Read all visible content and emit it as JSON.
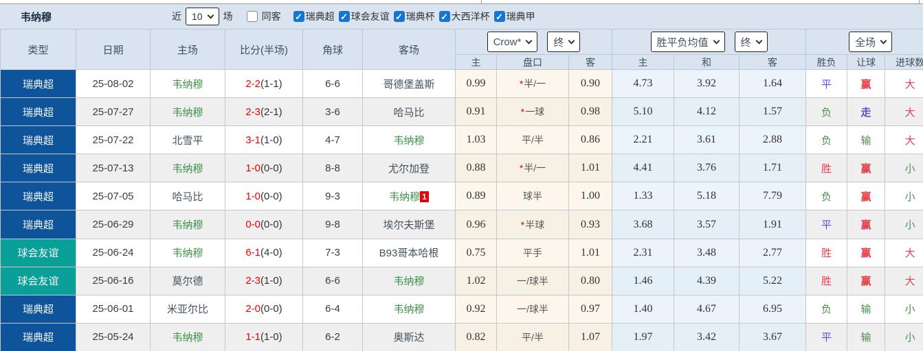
{
  "title": "韦纳穆",
  "filter": {
    "recent_label": "近",
    "recent_value": "10",
    "matches_label": "场",
    "same_away_label": "同客",
    "same_away_checked": false,
    "leagues": [
      {
        "label": "瑞典超",
        "checked": true
      },
      {
        "label": "球会友谊",
        "checked": true
      },
      {
        "label": "瑞典杯",
        "checked": true
      },
      {
        "label": "大西洋杯",
        "checked": true
      },
      {
        "label": "瑞典甲",
        "checked": true
      }
    ]
  },
  "header": {
    "type": "类型",
    "date": "日期",
    "home": "主场",
    "score": "比分(半场)",
    "corner": "角球",
    "away": "客场",
    "odds_company_select": "Crow*",
    "odds_time_select": "终",
    "avg_select": "胜平负均值",
    "avg_time_select": "终",
    "scope_select": "全场",
    "sub": [
      "主",
      "盘口",
      "客",
      "主",
      "和",
      "客",
      "胜负",
      "让球",
      "进球数"
    ]
  },
  "rows": [
    {
      "league": "瑞典超",
      "date": "25-08-02",
      "home": "韦纳穆",
      "home_focus": true,
      "score": "2-2",
      "half": "(1-1)",
      "corners": "6-6",
      "away": "哥德堡盖斯",
      "away_focus": false,
      "away_badge": "",
      "crow_star": true,
      "crow": [
        "0.99",
        "半/一",
        "0.90"
      ],
      "avg": [
        "4.73",
        "3.92",
        "1.64"
      ],
      "results": [
        "平",
        "赢",
        "大"
      ]
    },
    {
      "league": "瑞典超",
      "date": "25-07-27",
      "home": "韦纳穆",
      "home_focus": true,
      "score": "2-3",
      "half": "(2-1)",
      "corners": "3-6",
      "away": "哈马比",
      "away_focus": false,
      "away_badge": "",
      "crow_star": true,
      "crow": [
        "0.91",
        "一球",
        "0.98"
      ],
      "avg": [
        "5.10",
        "4.12",
        "1.57"
      ],
      "results": [
        "负",
        "走",
        "大"
      ]
    },
    {
      "league": "瑞典超",
      "date": "25-07-22",
      "home": "北雪平",
      "home_focus": false,
      "score": "3-1",
      "half": "(1-0)",
      "corners": "4-7",
      "away": "韦纳穆",
      "away_focus": true,
      "away_badge": "",
      "crow_star": false,
      "crow": [
        "1.03",
        "平/半",
        "0.86"
      ],
      "avg": [
        "2.21",
        "3.61",
        "2.88"
      ],
      "results": [
        "负",
        "输",
        "大"
      ]
    },
    {
      "league": "瑞典超",
      "date": "25-07-13",
      "home": "韦纳穆",
      "home_focus": true,
      "score": "1-0",
      "half": "(0-0)",
      "corners": "8-8",
      "away": "尤尔加登",
      "away_focus": false,
      "away_badge": "",
      "crow_star": true,
      "crow": [
        "0.88",
        "半/一",
        "1.01"
      ],
      "avg": [
        "4.41",
        "3.76",
        "1.71"
      ],
      "results": [
        "胜",
        "赢",
        "小"
      ]
    },
    {
      "league": "瑞典超",
      "date": "25-07-05",
      "home": "哈马比",
      "home_focus": false,
      "score": "1-0",
      "half": "(0-0)",
      "corners": "9-3",
      "away": "韦纳穆",
      "away_focus": true,
      "away_badge": "1",
      "crow_star": false,
      "crow": [
        "0.89",
        "球半",
        "1.00"
      ],
      "avg": [
        "1.33",
        "5.18",
        "7.79"
      ],
      "results": [
        "负",
        "赢",
        "小"
      ]
    },
    {
      "league": "瑞典超",
      "date": "25-06-29",
      "home": "韦纳穆",
      "home_focus": true,
      "score": "0-0",
      "half": "(0-0)",
      "corners": "9-8",
      "away": "埃尔夫斯堡",
      "away_focus": false,
      "away_badge": "",
      "crow_star": true,
      "crow": [
        "0.96",
        "半球",
        "0.93"
      ],
      "avg": [
        "3.68",
        "3.57",
        "1.91"
      ],
      "results": [
        "平",
        "赢",
        "小"
      ]
    },
    {
      "league": "球会友谊",
      "date": "25-06-24",
      "home": "韦纳穆",
      "home_focus": true,
      "score": "6-1",
      "half": "(4-0)",
      "corners": "7-3",
      "away": "B93哥本哈根",
      "away_focus": false,
      "away_badge": "",
      "crow_star": false,
      "crow": [
        "0.75",
        "平手",
        "1.01"
      ],
      "avg": [
        "2.31",
        "3.48",
        "2.77"
      ],
      "results": [
        "胜",
        "赢",
        "大"
      ]
    },
    {
      "league": "球会友谊",
      "date": "25-06-16",
      "home": "莫尔德",
      "home_focus": false,
      "score": "2-3",
      "half": "(1-0)",
      "corners": "6-6",
      "away": "韦纳穆",
      "away_focus": true,
      "away_badge": "",
      "crow_star": false,
      "crow": [
        "1.02",
        "一/球半",
        "0.80"
      ],
      "avg": [
        "1.46",
        "4.39",
        "5.22"
      ],
      "results": [
        "胜",
        "赢",
        "大"
      ]
    },
    {
      "league": "瑞典超",
      "date": "25-06-01",
      "home": "米亚尔比",
      "home_focus": false,
      "score": "2-0",
      "half": "(0-0)",
      "corners": "6-4",
      "away": "韦纳穆",
      "away_focus": true,
      "away_badge": "",
      "crow_star": false,
      "crow": [
        "0.92",
        "一/球半",
        "0.97"
      ],
      "avg": [
        "1.40",
        "4.67",
        "6.95"
      ],
      "results": [
        "负",
        "输",
        "小"
      ]
    },
    {
      "league": "瑞典超",
      "date": "25-05-24",
      "home": "韦纳穆",
      "home_focus": true,
      "score": "1-1",
      "half": "(1-0)",
      "corners": "6-2",
      "away": "奥斯达",
      "away_focus": false,
      "away_badge": "",
      "crow_star": false,
      "crow": [
        "0.82",
        "平/半",
        "1.07"
      ],
      "avg": [
        "1.97",
        "3.42",
        "3.67"
      ],
      "results": [
        "平",
        "输",
        "小"
      ]
    }
  ],
  "colors": {
    "league_blue_bg": "#0e549b",
    "friendly_teal_bg": "#0aa099",
    "focus_team_green": "#3c9048",
    "score_red": "#ee0000",
    "result_red": "#e5404b",
    "result_blue": "#5151db",
    "result_green": "#4a8f4a",
    "header_bg": "#d9e4f0",
    "stripe_gray": "#efefef",
    "odds_cream_bg": "#fcf6ec",
    "avg_blue_bg": "#ebf4fa",
    "badge_red": "#e60000",
    "checkbox_blue": "#1576d2"
  }
}
